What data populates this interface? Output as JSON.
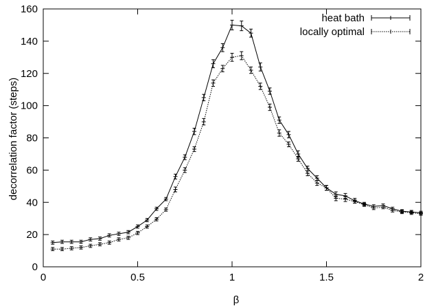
{
  "chart_data": {
    "type": "line",
    "title": "",
    "xlabel": "β",
    "ylabel": "decorrelation factor (steps)",
    "xlim": [
      0,
      2
    ],
    "ylim": [
      0,
      160
    ],
    "xticks": [
      "0",
      "0.5",
      "1",
      "1.5",
      "2"
    ],
    "yticks": [
      "0",
      "20",
      "40",
      "60",
      "80",
      "100",
      "120",
      "140",
      "160"
    ],
    "grid": false,
    "legend_position": "top-right",
    "x": [
      0.05,
      0.1,
      0.15,
      0.2,
      0.25,
      0.3,
      0.35,
      0.4,
      0.45,
      0.5,
      0.55,
      0.6,
      0.65,
      0.7,
      0.75,
      0.8,
      0.85,
      0.9,
      0.95,
      1.0,
      1.05,
      1.1,
      1.15,
      1.2,
      1.25,
      1.3,
      1.35,
      1.4,
      1.45,
      1.5,
      1.55,
      1.6,
      1.65,
      1.7,
      1.75,
      1.8,
      1.85,
      1.9,
      1.95,
      2.0
    ],
    "series": [
      {
        "name": "heat bath",
        "style": "solid",
        "color": "#000000",
        "values": [
          15,
          15.5,
          15.5,
          15.5,
          17,
          17.5,
          19.5,
          20.5,
          21.5,
          25,
          29,
          36,
          42,
          56,
          68,
          84,
          105,
          126,
          136,
          150,
          149.5,
          145,
          124,
          109,
          91,
          82,
          70,
          61,
          55,
          49,
          45,
          44,
          41,
          39,
          37.5,
          38,
          36,
          34.5,
          34,
          33.5
        ],
        "errors": [
          1,
          1,
          1,
          1,
          1,
          1,
          1,
          1,
          1,
          1,
          1,
          1,
          1,
          1.5,
          1.5,
          2,
          2,
          2.5,
          2.5,
          3,
          3,
          2.5,
          2.5,
          2,
          2,
          2,
          2,
          1.5,
          1.5,
          1.5,
          1.5,
          1.5,
          1.5,
          1,
          1,
          1,
          1,
          1,
          1,
          1
        ]
      },
      {
        "name": "locally optimal",
        "style": "dotted",
        "color": "#000000",
        "values": [
          11,
          11,
          11.5,
          12,
          13,
          14,
          15,
          17,
          18,
          21,
          25,
          29.5,
          35.5,
          48,
          60,
          73,
          90,
          114,
          123,
          130,
          131,
          122,
          112,
          99,
          83,
          76,
          67,
          58,
          52,
          49,
          42.5,
          42,
          40.5,
          38.5,
          36.5,
          37,
          35,
          34,
          33.5,
          33
        ],
        "errors": [
          1,
          1,
          1,
          1,
          1,
          1,
          1,
          1,
          1,
          1,
          1,
          1,
          1,
          1.5,
          1.5,
          1.5,
          2,
          2,
          2,
          2.5,
          2.5,
          2,
          2,
          2,
          2,
          1.5,
          1.5,
          1.5,
          1.5,
          1.5,
          1.5,
          1.5,
          1,
          1,
          1,
          1,
          1,
          1,
          1,
          1
        ]
      }
    ]
  }
}
